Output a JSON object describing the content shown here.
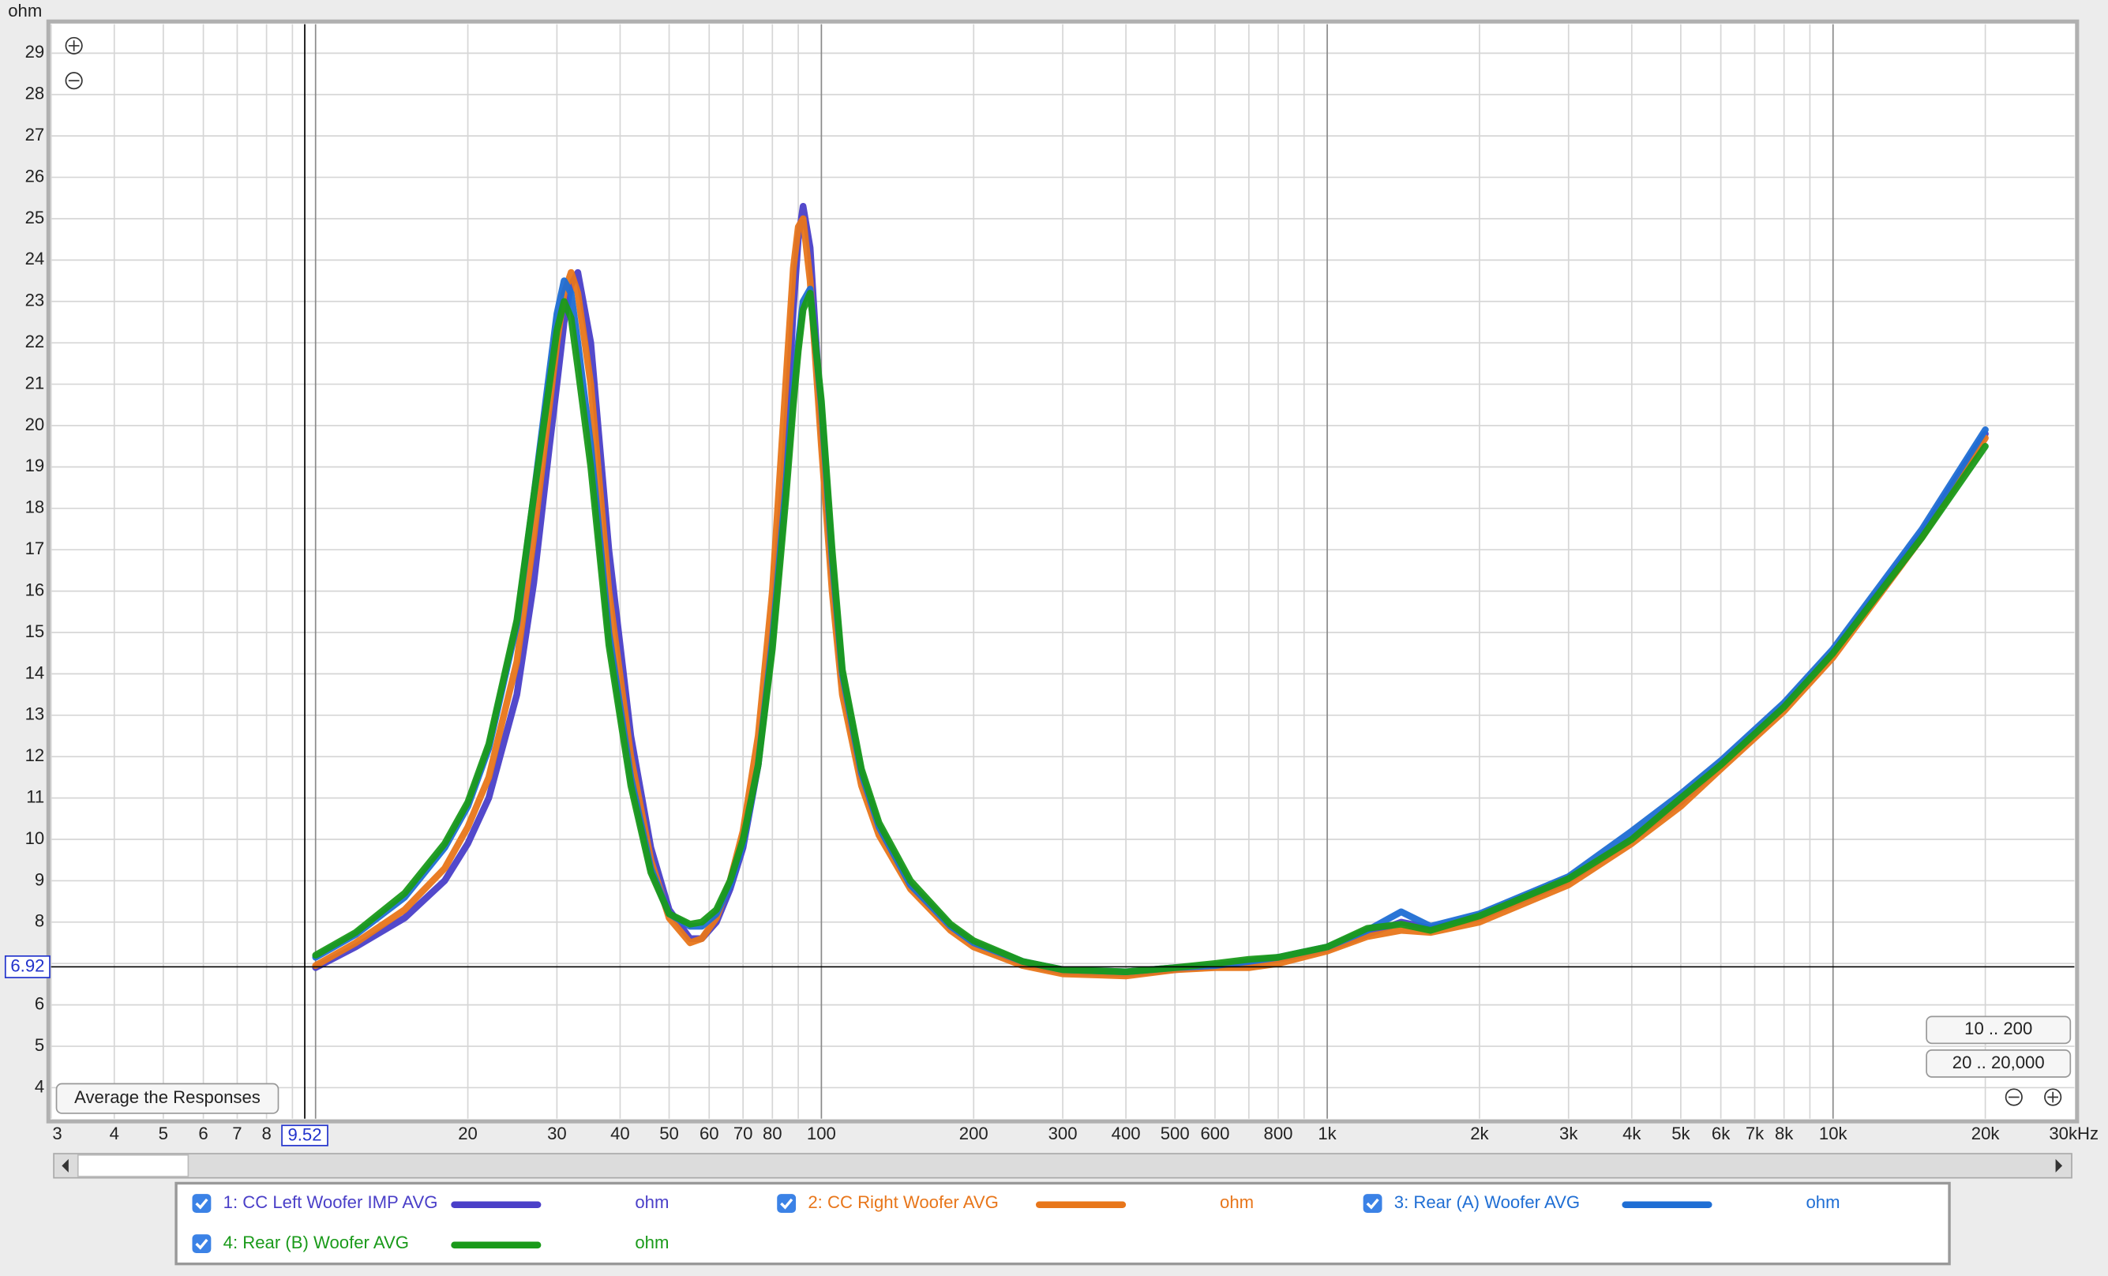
{
  "chart_data": {
    "type": "line",
    "y_unit_label": "ohm",
    "x": [
      10,
      12,
      15,
      18,
      20,
      22,
      25,
      27,
      29,
      30,
      31,
      32,
      33,
      35,
      38,
      42,
      46,
      50,
      55,
      58,
      62,
      66,
      70,
      75,
      80,
      85,
      88,
      90,
      92,
      95,
      100,
      105,
      110,
      120,
      130,
      150,
      180,
      200,
      250,
      300,
      400,
      500,
      600,
      700,
      800,
      1000,
      1200,
      1400,
      1600,
      2000,
      3000,
      4000,
      5000,
      6000,
      8000,
      10000,
      15000,
      20000
    ],
    "series": [
      {
        "name": "1: CC Left Woofer IMP AVG",
        "unit": "ohm",
        "color": "#4a3fc8",
        "values": [
          6.9,
          7.4,
          8.1,
          9.0,
          9.9,
          11.0,
          13.5,
          16.2,
          19.5,
          21,
          22.5,
          23.4,
          23.7,
          22,
          17,
          12.5,
          9.8,
          8.3,
          7.6,
          7.6,
          8.0,
          8.8,
          9.8,
          11.8,
          15,
          19.5,
          22.8,
          24.5,
          25.3,
          24.3,
          20,
          16.5,
          13.8,
          11.5,
          10.3,
          8.9,
          7.9,
          7.5,
          7.0,
          6.8,
          6.75,
          6.85,
          6.95,
          7.0,
          7.1,
          7.35,
          7.7,
          8.0,
          7.85,
          8.1,
          9.0,
          10.0,
          10.9,
          11.8,
          13.2,
          14.5,
          17.4,
          19.8
        ]
      },
      {
        "name": "2: CC Right Woofer AVG",
        "unit": "ohm",
        "color": "#e8761a",
        "values": [
          6.95,
          7.5,
          8.3,
          9.3,
          10.3,
          11.5,
          14.3,
          17.3,
          20.5,
          22,
          23.2,
          23.7,
          23.2,
          21,
          16,
          12,
          9.5,
          8.1,
          7.5,
          7.6,
          8.1,
          9,
          10.2,
          12.5,
          16,
          21,
          23.8,
          24.8,
          25.0,
          23.5,
          19.5,
          16,
          13.5,
          11.3,
          10.1,
          8.8,
          7.8,
          7.4,
          6.95,
          6.75,
          6.7,
          6.85,
          6.9,
          6.9,
          7.0,
          7.3,
          7.65,
          7.8,
          7.75,
          8.0,
          8.9,
          9.9,
          10.8,
          11.7,
          13.1,
          14.4,
          17.3,
          19.7
        ]
      },
      {
        "name": "3: Rear (A) Woofer AVG",
        "unit": "ohm",
        "color": "#1f6ed4",
        "values": [
          7.15,
          7.7,
          8.6,
          9.8,
          10.8,
          12.2,
          15.2,
          18.3,
          21.3,
          22.7,
          23.5,
          23.2,
          22,
          19.5,
          15,
          11.5,
          9.3,
          8.2,
          7.9,
          7.9,
          8.2,
          8.9,
          9.9,
          11.8,
          14.8,
          18.5,
          20.8,
          22,
          23,
          23.3,
          20.5,
          16.8,
          14,
          11.6,
          10.3,
          8.9,
          7.9,
          7.5,
          7.05,
          6.85,
          6.8,
          6.9,
          6.95,
          7.05,
          7.15,
          7.4,
          7.8,
          8.25,
          7.9,
          8.2,
          9.1,
          10.2,
          11.1,
          11.9,
          13.3,
          14.6,
          17.5,
          19.9
        ]
      },
      {
        "name": "4: Rear (B) Woofer AVG",
        "unit": "ohm",
        "color": "#1a9a1a",
        "values": [
          7.2,
          7.75,
          8.7,
          9.9,
          10.9,
          12.3,
          15.3,
          18.3,
          21.0,
          22.3,
          23.0,
          22.6,
          21.4,
          19,
          14.7,
          11.3,
          9.2,
          8.2,
          7.95,
          8.0,
          8.3,
          9.0,
          10.0,
          11.8,
          14.6,
          18.2,
          20.5,
          21.8,
          22.8,
          23.2,
          20.6,
          17,
          14.1,
          11.7,
          10.4,
          9.0,
          7.95,
          7.55,
          7.05,
          6.85,
          6.8,
          6.9,
          7.0,
          7.1,
          7.15,
          7.4,
          7.85,
          7.95,
          7.8,
          8.15,
          9.05,
          10.0,
          11.0,
          11.8,
          13.2,
          14.5,
          17.3,
          19.5
        ]
      }
    ],
    "xscale": "log",
    "xlim": [
      3,
      30000
    ],
    "ylim": [
      3.25,
      29.7
    ],
    "xticks": [
      3,
      4,
      5,
      6,
      7,
      8,
      20,
      30,
      40,
      50,
      60,
      70,
      80,
      100,
      200,
      300,
      400,
      500,
      600,
      800,
      {
        "value": 1000,
        "label": "1k"
      },
      {
        "value": 2000,
        "label": "2k"
      },
      {
        "value": 3000,
        "label": "3k"
      },
      {
        "value": 4000,
        "label": "4k"
      },
      {
        "value": 5000,
        "label": "5k"
      },
      {
        "value": 6000,
        "label": "6k"
      },
      {
        "value": 7000,
        "label": "7k"
      },
      {
        "value": 8000,
        "label": "8k"
      },
      {
        "value": 10000,
        "label": "10k"
      },
      {
        "value": 20000,
        "label": "20k"
      },
      {
        "value": 30000,
        "label": "30kHz"
      }
    ],
    "xgrid": [
      3,
      4,
      5,
      6,
      7,
      8,
      9,
      10,
      20,
      30,
      40,
      50,
      60,
      70,
      80,
      90,
      100,
      200,
      300,
      400,
      500,
      600,
      700,
      800,
      900,
      1000,
      2000,
      3000,
      4000,
      5000,
      6000,
      7000,
      8000,
      9000,
      10000,
      20000
    ],
    "yticks": [
      4,
      5,
      6,
      7,
      8,
      9,
      10,
      11,
      12,
      13,
      14,
      15,
      16,
      17,
      18,
      19,
      20,
      21,
      22,
      23,
      24,
      25,
      26,
      27,
      28,
      29
    ],
    "grid": true,
    "cursor_x": 9.52,
    "cursor_y": 6.92
  },
  "buttons": {
    "average": "Average the Responses",
    "range_low": "10 .. 200",
    "range_full": "20 .. 20,000"
  }
}
